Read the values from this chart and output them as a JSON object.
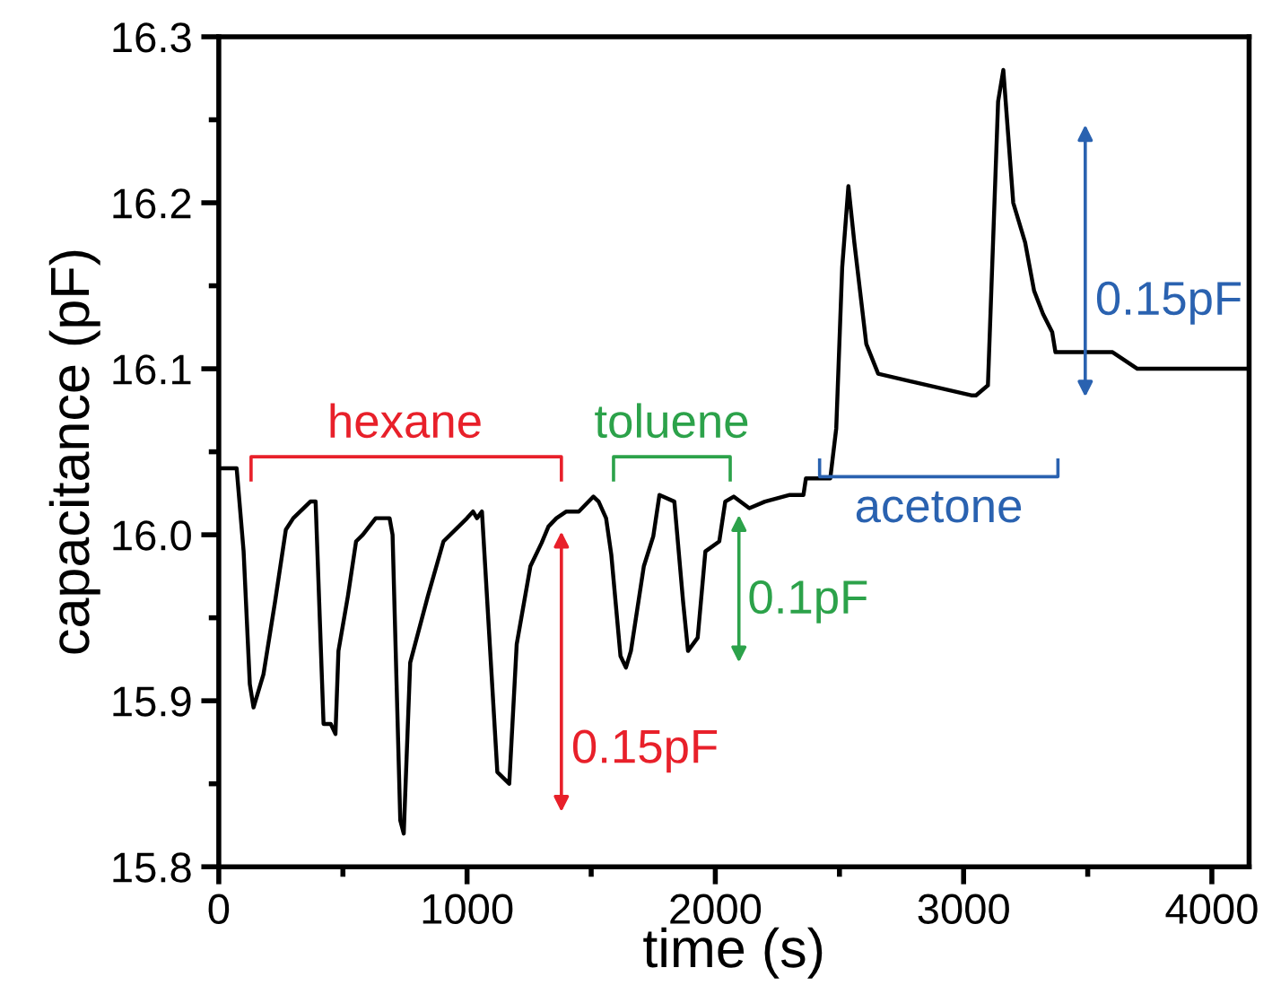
{
  "chart_data": {
    "type": "line",
    "xlabel": "time (s)",
    "ylabel": "capacitance (pF)",
    "xlim": [
      0,
      4150
    ],
    "ylim": [
      15.8,
      16.3
    ],
    "xticks": [
      0,
      {
        "value": 500,
        "label": null
      },
      1000,
      {
        "value": 1500,
        "label": null
      },
      2000,
      {
        "value": 2500,
        "label": null
      },
      3000,
      {
        "value": 3500,
        "label": null
      },
      4000
    ],
    "yticks": [
      15.8,
      {
        "value": 15.85,
        "label": null
      },
      15.9,
      {
        "value": 15.95,
        "label": null
      },
      {
        "value": 16.0,
        "label": "16.0"
      },
      {
        "value": 16.05,
        "label": null
      },
      16.1,
      {
        "value": 16.15,
        "label": null
      },
      16.2,
      {
        "value": 16.25,
        "label": null
      },
      16.3
    ],
    "grid": false,
    "legend": false,
    "marker": "none",
    "line_style": "solid",
    "series": [
      {
        "color": "#000000",
        "x": [
          0,
          72,
          100,
          125,
          140,
          180,
          227,
          270,
          300,
          369,
          390,
          422,
          451,
          470,
          482,
          520,
          553,
          580,
          632,
          688,
          700,
          731,
          745,
          771,
          842,
          905,
          1000,
          1024,
          1040,
          1060,
          1122,
          1170,
          1200,
          1255,
          1300,
          1328,
          1360,
          1400,
          1450,
          1509,
          1530,
          1560,
          1581,
          1618,
          1640,
          1660,
          1712,
          1750,
          1775,
          1835,
          1870,
          1890,
          1929,
          1960,
          2016,
          2040,
          2074,
          2137,
          2200,
          2300,
          2355,
          2365,
          2463,
          2487,
          2511,
          2536,
          2560,
          2608,
          2656,
          3031,
          3050,
          3098,
          3139,
          3160,
          3200,
          3248,
          3284,
          3320,
          3357,
          3370,
          3500,
          3600,
          3700,
          4000,
          4150
        ],
        "values": [
          16.04,
          16.04,
          15.99,
          15.91,
          15.896,
          15.916,
          15.96,
          16.003,
          16.01,
          16.02,
          16.02,
          15.886,
          15.886,
          15.88,
          15.93,
          15.963,
          15.996,
          16.0,
          16.01,
          16.01,
          16.0,
          15.828,
          15.82,
          15.923,
          15.963,
          15.996,
          16.01,
          16.014,
          16.01,
          16.014,
          15.857,
          15.85,
          15.934,
          15.981,
          15.995,
          16.005,
          16.01,
          16.014,
          16.014,
          16.023,
          16.02,
          16.01,
          15.988,
          15.927,
          15.92,
          15.93,
          15.981,
          15.999,
          16.024,
          16.02,
          15.96,
          15.93,
          15.938,
          15.99,
          15.996,
          16.02,
          16.023,
          16.016,
          16.02,
          16.024,
          16.024,
          16.034,
          16.034,
          16.064,
          16.161,
          16.21,
          16.176,
          16.115,
          16.097,
          16.084,
          16.084,
          16.09,
          16.261,
          16.28,
          16.2,
          16.176,
          16.147,
          16.133,
          16.122,
          16.11,
          16.11,
          16.11,
          16.1,
          16.1,
          16.1
        ]
      }
    ],
    "annotations": [
      "hexane",
      "toluene",
      "acetone",
      "0.15pF",
      "0.1pF",
      "0.15pF"
    ]
  }
}
